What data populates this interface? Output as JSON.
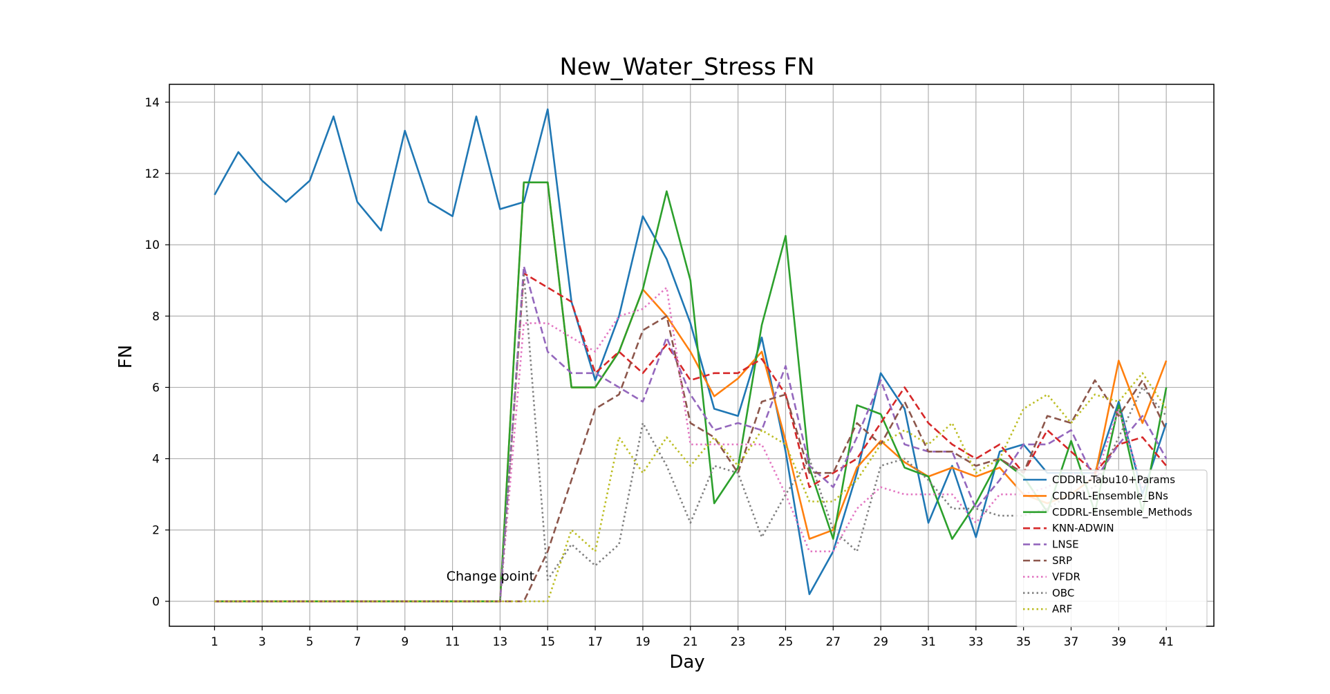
{
  "chart_data": {
    "type": "line",
    "title": "New_Water_Stress FN",
    "xlabel": "Day",
    "ylabel": "FN",
    "xlim": [
      -0.9,
      43
    ],
    "ylim": [
      -0.7,
      14.5
    ],
    "xticks": [
      1,
      3,
      5,
      7,
      9,
      11,
      13,
      15,
      17,
      19,
      21,
      23,
      25,
      27,
      29,
      31,
      33,
      35,
      37,
      39,
      41
    ],
    "yticks": [
      0,
      2,
      4,
      6,
      8,
      10,
      12,
      14
    ],
    "grid": true,
    "legend_position": "lower-right",
    "annotation": {
      "text": "Change point",
      "x": 13,
      "y": 0.7
    },
    "x": [
      1,
      2,
      3,
      4,
      5,
      6,
      7,
      8,
      9,
      10,
      11,
      12,
      13,
      14,
      15,
      16,
      17,
      18,
      19,
      20,
      21,
      22,
      23,
      24,
      25,
      26,
      27,
      28,
      29,
      30,
      31,
      32,
      33,
      34,
      35,
      36,
      37,
      38,
      39,
      40,
      41
    ],
    "series": [
      {
        "name": "CDDRL-Tabu10+Params",
        "color": "#1f77b4",
        "style": "solid",
        "values": [
          11.4,
          12.6,
          11.8,
          11.2,
          11.8,
          13.6,
          11.2,
          10.4,
          13.2,
          11.2,
          10.8,
          13.6,
          11.0,
          11.2,
          13.8,
          8.4,
          6.2,
          8.0,
          10.8,
          9.6,
          7.8,
          5.4,
          5.2,
          7.4,
          4.2,
          0.2,
          1.4,
          3.6,
          6.4,
          5.4,
          2.2,
          3.8,
          1.8,
          4.2,
          4.4,
          3.6,
          3.6,
          3.6,
          5.6,
          3.0,
          5.0
        ]
      },
      {
        "name": "CDDRL-Ensemble_BNs",
        "color": "#ff7f0e",
        "style": "solid",
        "values": [
          0,
          0,
          0,
          0,
          0,
          0,
          0,
          0,
          0,
          0,
          0,
          0,
          0,
          11.75,
          11.75,
          6.0,
          6.0,
          7.0,
          8.75,
          8.0,
          7.0,
          5.75,
          6.25,
          7.0,
          4.5,
          1.75,
          2.0,
          3.75,
          4.5,
          3.9,
          3.5,
          3.75,
          3.5,
          3.75,
          3.0,
          2.75,
          3.0,
          3.5,
          6.75,
          5.0,
          6.75
        ]
      },
      {
        "name": "CDDRL-Ensemble_Methods",
        "color": "#2ca02c",
        "style": "solid",
        "values": [
          0,
          0,
          0,
          0,
          0,
          0,
          0,
          0,
          0,
          0,
          0,
          0,
          0,
          11.75,
          11.75,
          6.0,
          6.0,
          7.0,
          8.75,
          11.5,
          9.0,
          2.75,
          3.75,
          7.75,
          10.25,
          3.75,
          1.75,
          5.5,
          5.25,
          3.75,
          3.5,
          1.75,
          2.75,
          4.0,
          3.5,
          2.5,
          4.5,
          2.5,
          5.5,
          2.5,
          6.0
        ]
      },
      {
        "name": "KNN-ADWIN",
        "color": "#d62728",
        "style": "dashed",
        "values": [
          0,
          0,
          0,
          0,
          0,
          0,
          0,
          0,
          0,
          0,
          0,
          0,
          0,
          9.2,
          8.8,
          8.4,
          6.4,
          7.0,
          6.4,
          7.2,
          6.2,
          6.4,
          6.4,
          6.8,
          5.8,
          3.2,
          3.6,
          4.0,
          5.0,
          6.0,
          5.0,
          4.4,
          4.0,
          4.4,
          3.6,
          4.8,
          4.2,
          3.6,
          4.4,
          4.6,
          3.8
        ]
      },
      {
        "name": "LNSE",
        "color": "#9467bd",
        "style": "dashed",
        "values": [
          0,
          0,
          0,
          0,
          0,
          0,
          0,
          0,
          0,
          0,
          0,
          0,
          0,
          9.4,
          7.0,
          6.4,
          6.4,
          6.0,
          5.6,
          7.4,
          5.8,
          4.8,
          5.0,
          4.8,
          6.6,
          3.8,
          3.2,
          4.6,
          6.2,
          4.4,
          4.2,
          4.2,
          2.6,
          3.4,
          4.4,
          4.4,
          4.8,
          3.4,
          4.4,
          5.2,
          4.0
        ]
      },
      {
        "name": "SRP",
        "color": "#8c564b",
        "style": "dashed",
        "values": [
          0,
          0,
          0,
          0,
          0,
          0,
          0,
          0,
          0,
          0,
          0,
          0,
          0,
          0,
          1.4,
          3.4,
          5.4,
          5.8,
          7.6,
          8.0,
          5.0,
          4.6,
          3.6,
          5.6,
          5.8,
          3.6,
          3.6,
          5.0,
          4.4,
          5.6,
          4.2,
          4.2,
          3.8,
          4.0,
          3.6,
          5.2,
          5.0,
          6.2,
          5.2,
          6.2,
          4.8
        ]
      },
      {
        "name": "VFDR",
        "color": "#e377c2",
        "style": "dotted",
        "values": [
          0,
          0,
          0,
          0,
          0,
          0,
          0,
          0,
          0,
          0,
          0,
          0,
          0,
          7.8,
          7.8,
          7.4,
          7.0,
          8.0,
          8.2,
          8.8,
          4.4,
          4.4,
          4.4,
          4.4,
          3.0,
          1.4,
          1.4,
          2.6,
          3.2,
          3.0,
          3.0,
          3.0,
          2.2,
          3.0,
          3.0,
          3.2,
          3.6,
          3.4,
          5.4,
          3.2,
          3.6
        ]
      },
      {
        "name": "OBC",
        "color": "#7f7f7f",
        "style": "dotted",
        "values": [
          0,
          0,
          0,
          0,
          0,
          0,
          0,
          0,
          0,
          0,
          0,
          0,
          0,
          9.2,
          0.6,
          1.6,
          1.0,
          1.6,
          5.0,
          3.8,
          2.2,
          3.8,
          3.6,
          1.8,
          3.0,
          4.0,
          2.0,
          1.4,
          3.8,
          4.0,
          3.4,
          2.6,
          2.6,
          2.4,
          2.4,
          2.6,
          3.0,
          3.2,
          4.6,
          6.0,
          5.2
        ]
      },
      {
        "name": "ARF",
        "color": "#bcbd22",
        "style": "dotted",
        "values": [
          0,
          0,
          0,
          0,
          0,
          0,
          0,
          0,
          0,
          0,
          0,
          0,
          0,
          0,
          0,
          2.0,
          1.4,
          4.6,
          3.6,
          4.6,
          3.8,
          4.6,
          3.8,
          4.8,
          4.4,
          2.8,
          2.8,
          3.4,
          4.4,
          4.8,
          4.4,
          5.0,
          3.6,
          4.0,
          5.4,
          5.8,
          5.0,
          5.8,
          5.6,
          6.4,
          5.4
        ]
      }
    ]
  }
}
